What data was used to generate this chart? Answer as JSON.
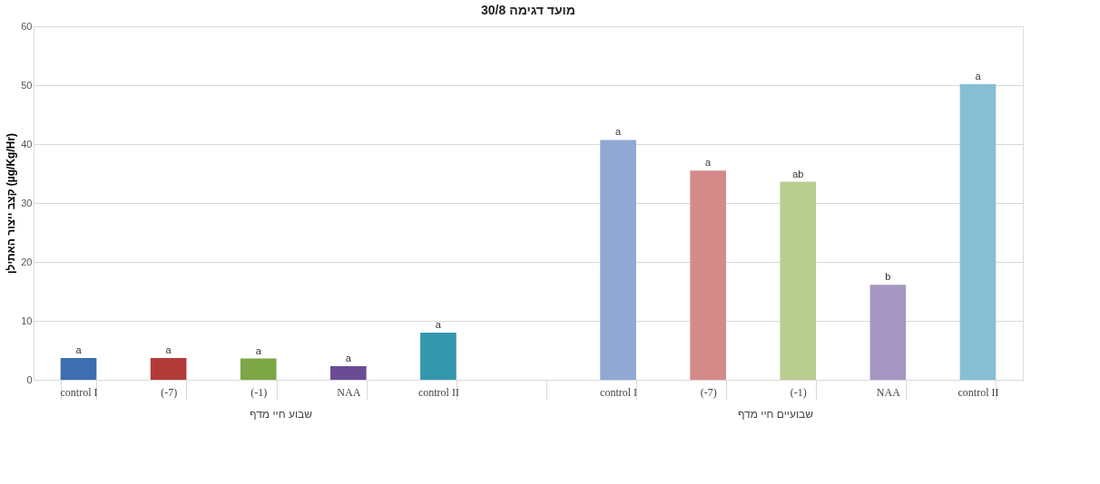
{
  "chart_data": {
    "type": "bar",
    "title": "מועד דגימה 30/8",
    "ylabel": "קצב ייצור האתילן (µg/Kg/Hr)",
    "categories": [
      "control I",
      "(-7)",
      "(-1)",
      "NAA",
      "control II",
      null,
      "control I",
      "(-7)",
      "(-1)",
      "NAA",
      "control II"
    ],
    "values": [
      3.7,
      3.7,
      3.6,
      2.3,
      8.0,
      null,
      40.7,
      35.5,
      33.6,
      16.1,
      50.2
    ],
    "colors": [
      "#3c6eb0",
      "#b33b37",
      "#7da645",
      "#6a4c94",
      "#3597ae",
      "#ffffff",
      "#8fa8d4",
      "#d48a89",
      "#b8cd8f",
      "#a697c2",
      "#86bfd3"
    ],
    "value_labels": [
      "a",
      "a",
      "a",
      "a",
      "a",
      null,
      "a",
      "a",
      "ab",
      "b",
      "a"
    ],
    "annotations": [
      "שבוע חיי מדף",
      "שבועיים חיי מדף"
    ],
    "ylim": [
      0,
      60
    ],
    "yticks": [
      0,
      10,
      20,
      30,
      40,
      50,
      60
    ],
    "grid": "y",
    "legend": false
  }
}
